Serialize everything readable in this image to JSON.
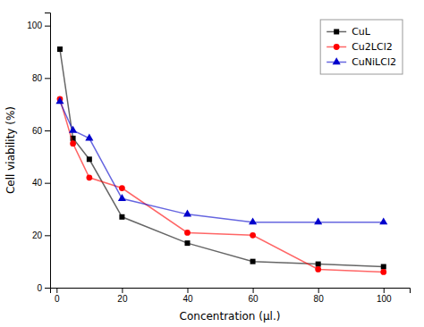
{
  "chart_data": {
    "type": "line",
    "xlabel": "Concentration (μl.)",
    "ylabel": "Cell viability (%)",
    "x": [
      1,
      5,
      10,
      20,
      40,
      60,
      80,
      100
    ],
    "series": [
      {
        "name": "CuL",
        "color": "#000000",
        "marker": "square",
        "values": [
          91,
          57,
          49,
          27,
          17,
          10,
          9,
          8
        ]
      },
      {
        "name": "Cu2LCl2",
        "color": "#ff0000",
        "marker": "circle",
        "values": [
          72,
          55,
          42,
          38,
          21,
          20,
          7,
          6
        ]
      },
      {
        "name": "CuNiLCl2",
        "color": "#0000cc",
        "marker": "triangle",
        "values": [
          71,
          60,
          57,
          34,
          28,
          25,
          25,
          25
        ]
      }
    ],
    "xlim": [
      -2,
      108
    ],
    "ylim": [
      0,
      105
    ],
    "xticks": [
      0,
      20,
      40,
      60,
      80,
      100
    ],
    "yticks": [
      0,
      20,
      40,
      60,
      80,
      100
    ],
    "grid": false,
    "legend": "upper right"
  }
}
